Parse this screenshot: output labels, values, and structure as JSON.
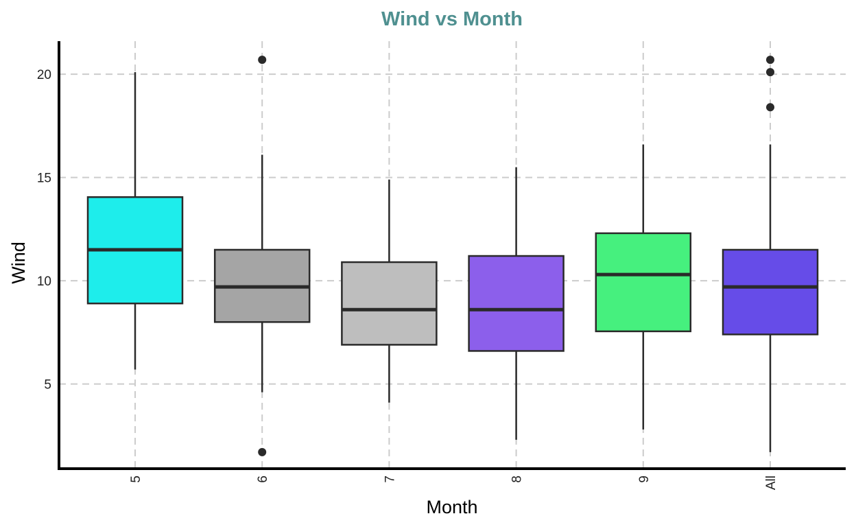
{
  "chart_data": {
    "type": "boxplot",
    "title": "Wind vs Month",
    "xlabel": "Month",
    "ylabel": "Wind",
    "categories": [
      "5",
      "6",
      "7",
      "8",
      "9",
      "All"
    ],
    "y_ticks": [
      5,
      10,
      15,
      20
    ],
    "ylim": [
      0.9,
      21.6
    ],
    "grid": "major x and y, dashed",
    "legend": "none",
    "boxes": [
      {
        "category": "5",
        "whisker_low": 5.7,
        "q1": 8.9,
        "median": 11.5,
        "q3": 14.05,
        "whisker_high": 20.1,
        "outliers": [],
        "color": "#1eedeb"
      },
      {
        "category": "6",
        "whisker_low": 4.6,
        "q1": 8.0,
        "median": 9.7,
        "q3": 11.5,
        "whisker_high": 16.1,
        "outliers": [
          1.7,
          20.7
        ],
        "color": "#a5a5a5"
      },
      {
        "category": "7",
        "whisker_low": 4.1,
        "q1": 6.9,
        "median": 8.6,
        "q3": 10.9,
        "whisker_high": 14.9,
        "outliers": [],
        "color": "#bebebe"
      },
      {
        "category": "8",
        "whisker_low": 2.3,
        "q1": 6.6,
        "median": 8.6,
        "q3": 11.2,
        "whisker_high": 15.5,
        "outliers": [],
        "color": "#8c5feb"
      },
      {
        "category": "9",
        "whisker_low": 2.8,
        "q1": 7.55,
        "median": 10.3,
        "q3": 12.3,
        "whisker_high": 16.6,
        "outliers": [],
        "color": "#46f07e"
      },
      {
        "category": "All",
        "whisker_low": 1.7,
        "q1": 7.4,
        "median": 9.7,
        "q3": 11.5,
        "whisker_high": 16.6,
        "outliers": [
          18.4,
          20.1,
          20.7
        ],
        "color": "#664ce8"
      }
    ],
    "colors": {
      "title": "#4f9090",
      "box_outline": "#2a2a2a",
      "median": "#2a2a2a",
      "outlier": "#2a2a2a",
      "grid": "#cccccc",
      "axis": "#000000"
    }
  }
}
